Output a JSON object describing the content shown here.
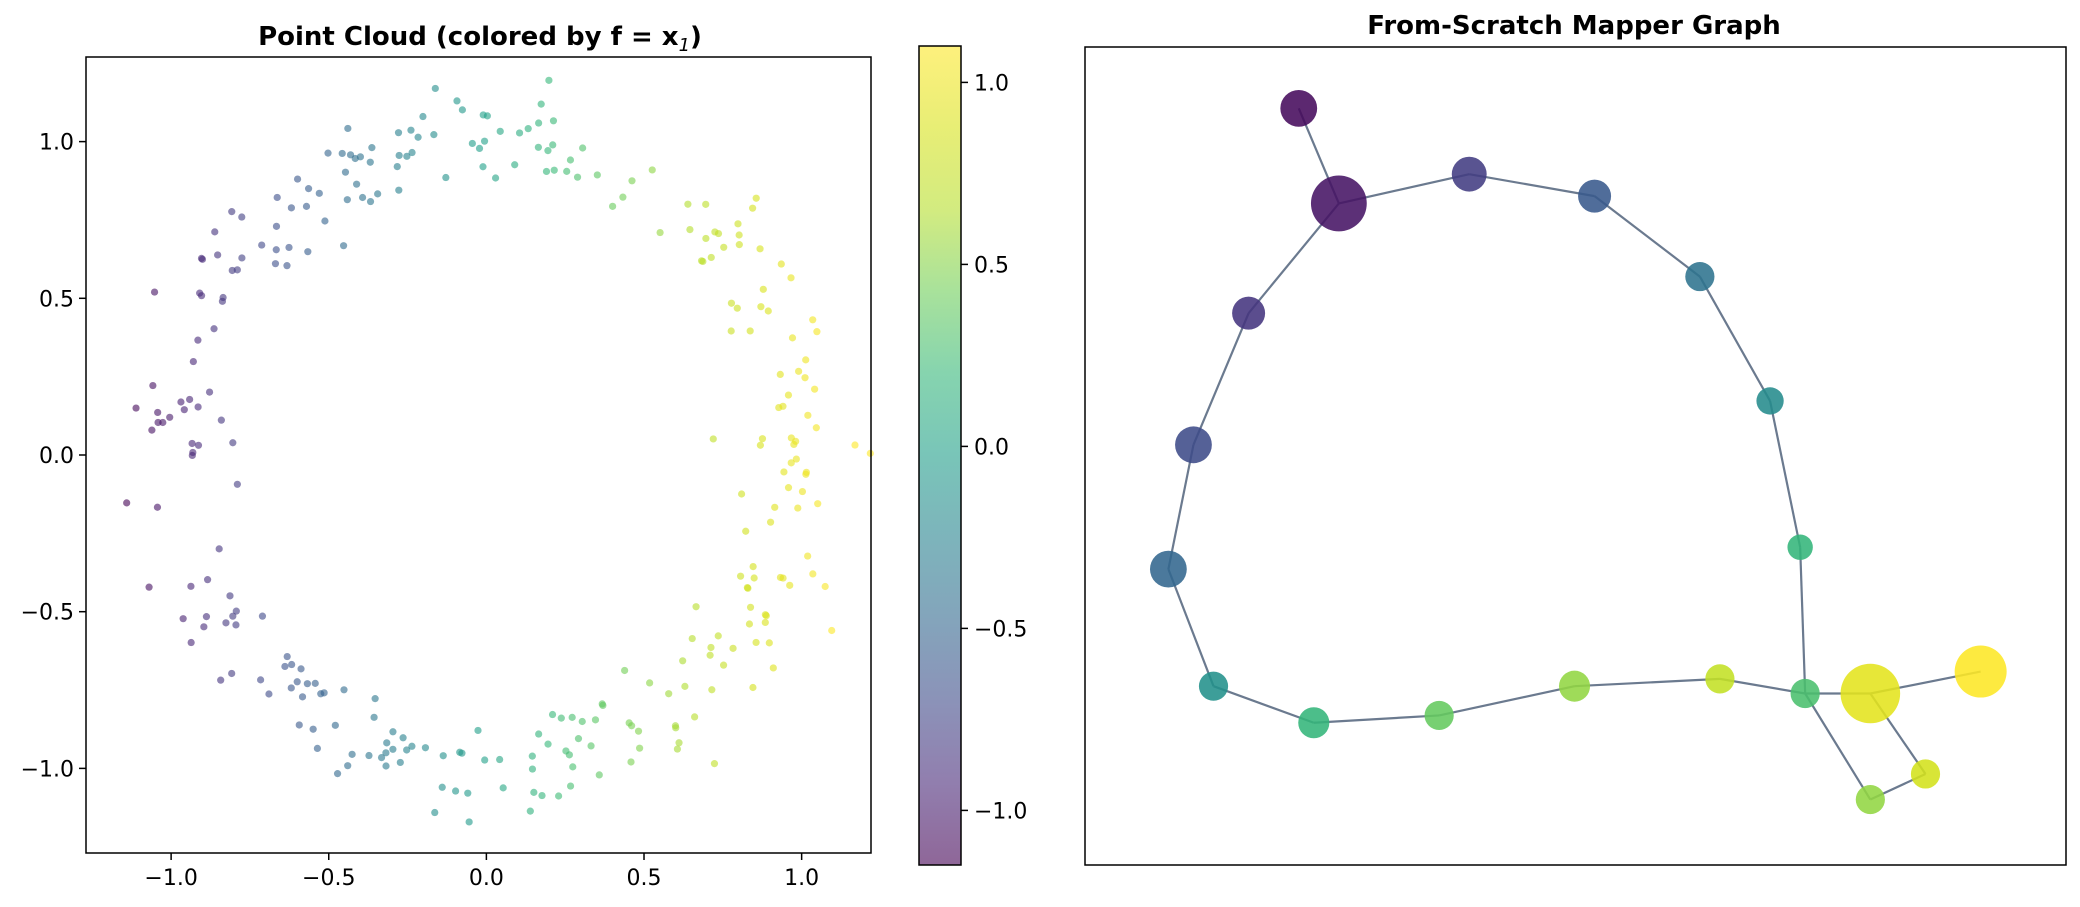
{
  "chart_data": [
    {
      "type": "scatter",
      "title": "Point Cloud (colored by f = x",
      "title_subscript": "1",
      "title_suffix": ")",
      "xlabel": "",
      "ylabel": "",
      "xlim": [
        -1.27,
        1.22
      ],
      "ylim": [
        -1.27,
        1.27
      ],
      "xticks": [
        -1.0,
        -0.5,
        0.0,
        0.5,
        1.0
      ],
      "xtick_labels": [
        "−1.0",
        "−0.5",
        "0.0",
        "0.5",
        "1.0"
      ],
      "yticks": [
        -1.0,
        -0.5,
        0.0,
        0.5,
        1.0
      ],
      "ytick_labels": [
        "−1.0",
        "−0.5",
        "0.0",
        "0.5",
        "1.0"
      ],
      "colormap": "viridis",
      "point_alpha": 0.6,
      "color_by": "x",
      "n_points": 300,
      "ring_radius_mean": 1.0,
      "ring_noise": 0.08,
      "colorbar": {
        "range": [
          -1.15,
          1.1
        ],
        "ticks": [
          1.0,
          0.5,
          0.0,
          -0.5,
          -1.0
        ],
        "tick_labels": [
          "1.0",
          "0.5",
          "0.0",
          "−0.5",
          "−1.0"
        ]
      }
    },
    {
      "type": "graph",
      "title": "From-Scratch Mapper Graph",
      "node_color_range": [
        -1.1,
        1.1
      ],
      "nodes": [
        {
          "id": 0,
          "x": 0.22,
          "y": 0.93,
          "value": -1.05,
          "size": 12
        },
        {
          "id": 1,
          "x": 0.3,
          "y": 0.8,
          "value": -1.0,
          "size": 22
        },
        {
          "id": 2,
          "x": 0.56,
          "y": 0.84,
          "value": -0.75,
          "size": 11
        },
        {
          "id": 3,
          "x": 0.81,
          "y": 0.81,
          "value": -0.55,
          "size": 10
        },
        {
          "id": 4,
          "x": 1.02,
          "y": 0.7,
          "value": -0.35,
          "size": 8
        },
        {
          "id": 5,
          "x": 1.16,
          "y": 0.53,
          "value": -0.15,
          "size": 7
        },
        {
          "id": 6,
          "x": 1.22,
          "y": 0.33,
          "value": 0.2,
          "size": 6
        },
        {
          "id": 7,
          "x": 1.23,
          "y": 0.13,
          "value": 0.3,
          "size": 8
        },
        {
          "id": 8,
          "x": 1.36,
          "y": 0.13,
          "value": 0.95,
          "size": 24
        },
        {
          "id": 9,
          "x": 1.58,
          "y": 0.16,
          "value": 1.1,
          "size": 20
        },
        {
          "id": 10,
          "x": 1.47,
          "y": 0.02,
          "value": 0.85,
          "size": 8
        },
        {
          "id": 11,
          "x": 1.36,
          "y": -0.015,
          "value": 0.55,
          "size": 8
        },
        {
          "id": 12,
          "x": 1.06,
          "y": 0.15,
          "value": 0.75,
          "size": 8
        },
        {
          "id": 13,
          "x": 0.77,
          "y": 0.14,
          "value": 0.55,
          "size": 9
        },
        {
          "id": 14,
          "x": 0.5,
          "y": 0.1,
          "value": 0.4,
          "size": 8
        },
        {
          "id": 15,
          "x": 0.25,
          "y": 0.09,
          "value": 0.2,
          "size": 9
        },
        {
          "id": 16,
          "x": 0.05,
          "y": 0.14,
          "value": -0.1,
          "size": 8
        },
        {
          "id": 17,
          "x": -0.04,
          "y": 0.3,
          "value": -0.45,
          "size": 12
        },
        {
          "id": 18,
          "x": 0.01,
          "y": 0.47,
          "value": -0.65,
          "size": 12
        },
        {
          "id": 19,
          "x": 0.12,
          "y": 0.65,
          "value": -0.8,
          "size": 10
        }
      ],
      "edges": [
        [
          0,
          1
        ],
        [
          1,
          2
        ],
        [
          2,
          3
        ],
        [
          3,
          4
        ],
        [
          4,
          5
        ],
        [
          5,
          6
        ],
        [
          6,
          7
        ],
        [
          7,
          8
        ],
        [
          8,
          9
        ],
        [
          8,
          10
        ],
        [
          10,
          11
        ],
        [
          11,
          7
        ],
        [
          7,
          12
        ],
        [
          12,
          13
        ],
        [
          13,
          14
        ],
        [
          14,
          15
        ],
        [
          15,
          16
        ],
        [
          16,
          17
        ],
        [
          17,
          18
        ],
        [
          18,
          19
        ],
        [
          19,
          1
        ]
      ],
      "edge_color": "#6b7a8f"
    }
  ]
}
